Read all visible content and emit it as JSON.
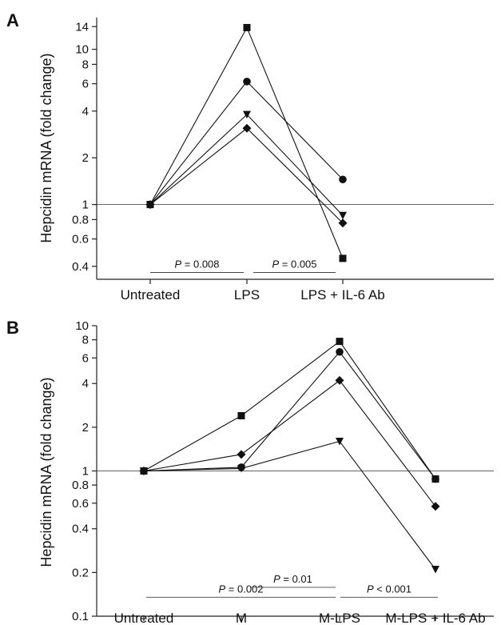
{
  "chart_data": [
    {
      "type": "line",
      "panel": "A",
      "ylabel": "Hepcidin mRNA (fold change)",
      "yscale": "log",
      "ylim": [
        0.33,
        16
      ],
      "yticks": [
        0.4,
        0.6,
        0.8,
        1,
        2,
        4,
        6,
        8,
        10,
        14
      ],
      "categories": [
        "Untreated",
        "LPS",
        "LPS + IL-6 Ab"
      ],
      "reference_line": 1,
      "series": [
        {
          "marker": "square",
          "values": [
            1,
            13.8,
            0.45
          ]
        },
        {
          "marker": "circle",
          "values": [
            1,
            6.2,
            1.45
          ]
        },
        {
          "marker": "triangle-down",
          "values": [
            1,
            3.8,
            0.85
          ]
        },
        {
          "marker": "diamond",
          "values": [
            1,
            3.1,
            0.76
          ]
        }
      ],
      "annotations": [
        {
          "text_italic": "P",
          "text_rest": " = 0.008",
          "from": 0,
          "to": 1,
          "level": 0.365
        },
        {
          "text_italic": "P",
          "text_rest": " = 0.005",
          "from": 1,
          "to": 2,
          "level": 0.365
        }
      ]
    },
    {
      "type": "line",
      "panel": "B",
      "ylabel": "Hepcidin mRNA (fold change)",
      "yscale": "log",
      "ylim": [
        0.1,
        10
      ],
      "yticks": [
        0.1,
        0.2,
        0.4,
        0.6,
        0.8,
        1,
        2,
        4,
        6,
        8,
        10
      ],
      "categories": [
        "Untreated",
        "M",
        "M-LPS",
        "M-LPS + IL-6 Ab"
      ],
      "reference_line": 1,
      "series": [
        {
          "marker": "square",
          "values": [
            1,
            2.4,
            7.8,
            0.88
          ]
        },
        {
          "marker": "circle",
          "values": [
            1,
            1.06,
            6.6,
            0.88
          ]
        },
        {
          "marker": "diamond",
          "values": [
            1,
            1.3,
            4.2,
            0.57
          ]
        },
        {
          "marker": "triangle-down",
          "values": [
            1,
            1.04,
            1.6,
            0.21
          ]
        }
      ],
      "annotations": [
        {
          "text_italic": "P",
          "text_rest": " = 0.002",
          "from": 0,
          "to": 2,
          "level": 0.135
        },
        {
          "text_italic": "P",
          "text_rest": " = 0.01",
          "from": 1,
          "to": 2,
          "level": 0.158
        },
        {
          "text_italic": "P",
          "text_rest": " < 0.001",
          "from": 2,
          "to": 3,
          "level": 0.135
        }
      ]
    }
  ]
}
